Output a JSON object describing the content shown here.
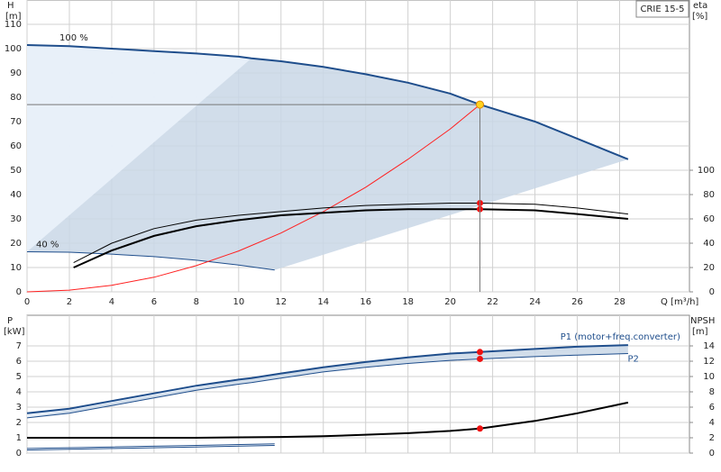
{
  "chart_data": [
    {
      "type": "line",
      "title": "CRIE 15-5",
      "ylabel": "H",
      "yunit": "[m]",
      "y2label": "eta",
      "y2unit": "[%]",
      "xlabel": "Q [m³/h]",
      "xlim": [
        0,
        31.3
      ],
      "xticks": [
        0,
        2,
        4,
        6,
        8,
        10,
        12,
        14,
        16,
        18,
        20,
        22,
        24,
        26,
        28
      ],
      "ylim": [
        0,
        120
      ],
      "yticks": [
        0,
        10,
        20,
        30,
        40,
        50,
        60,
        70,
        80,
        90,
        100,
        110
      ],
      "y2lim": [
        0,
        240
      ],
      "y2ticks": [
        0,
        20,
        40,
        60,
        80,
        100
      ],
      "grid": true,
      "duty_point": {
        "x": 21.4,
        "y": 77
      },
      "series": [
        {
          "name": "100 %",
          "color": "#1f4e8c",
          "x": [
            0,
            2,
            4,
            6,
            8,
            10,
            10.6,
            12,
            14,
            16,
            18,
            20,
            21.4,
            24,
            26,
            28.4
          ],
          "values": [
            101.5,
            101,
            100,
            99,
            98,
            96.7,
            96,
            94.8,
            92.5,
            89.5,
            86,
            81.5,
            77,
            70,
            63,
            54.5
          ]
        },
        {
          "name": "40 %",
          "color": "#1f4e8c",
          "x": [
            0,
            2,
            4,
            6,
            8,
            10,
            11.7
          ],
          "values": [
            16.5,
            16.3,
            15.5,
            14.5,
            13,
            11,
            9
          ]
        },
        {
          "color": "#ff2020",
          "x": [
            0,
            2,
            4,
            6,
            8,
            10,
            12,
            14,
            16,
            18,
            20,
            21.4
          ],
          "values": [
            0,
            0.7,
            2.7,
            6,
            10.8,
            16.8,
            24.2,
            33,
            43,
            54.5,
            67,
            77
          ]
        },
        {
          "color": "#000000",
          "axis": "y2",
          "x": [
            2.2,
            4,
            6,
            8,
            10,
            12,
            14,
            16,
            18,
            20,
            21.4,
            24,
            26,
            28.4
          ],
          "values": [
            20,
            34,
            46,
            54,
            59,
            63,
            65,
            67,
            68,
            68,
            68,
            67,
            64,
            60
          ]
        },
        {
          "color": "#000000",
          "axis": "y2",
          "x": [
            2.2,
            4,
            6,
            8,
            10,
            12,
            14,
            16,
            18,
            20,
            21.4,
            24,
            26,
            28.4
          ],
          "values": [
            24,
            40,
            52,
            59,
            63,
            66,
            69,
            71,
            72,
            73,
            73,
            72,
            69,
            64
          ]
        }
      ]
    },
    {
      "type": "line",
      "ylabel": "P",
      "yunit": "[kW]",
      "y2label": "NPSH",
      "y2unit": "[m]",
      "xlim": [
        0,
        31.3
      ],
      "ylim": [
        0,
        9
      ],
      "yticks": [
        0,
        1,
        2,
        3,
        4,
        5,
        6,
        7
      ],
      "y2lim": [
        0,
        18
      ],
      "y2ticks": [
        0,
        2,
        4,
        6,
        8,
        10,
        12,
        14
      ],
      "grid": true,
      "duty_point": {
        "x": 21.4
      },
      "series": [
        {
          "name": "P1 (motor+freq.converter)",
          "color": "#1f4e8c",
          "x": [
            0,
            2,
            4,
            6,
            8,
            10,
            10.6,
            12,
            14,
            16,
            18,
            20,
            21.4,
            24,
            26,
            28.4
          ],
          "values": [
            2.6,
            2.9,
            3.4,
            3.9,
            4.4,
            4.8,
            4.9,
            5.2,
            5.6,
            5.95,
            6.25,
            6.5,
            6.6,
            6.8,
            6.95,
            7.05
          ]
        },
        {
          "name": "P2",
          "color": "#1f4e8c",
          "x": [
            0,
            2,
            4,
            6,
            8,
            10,
            10.6,
            12,
            14,
            16,
            18,
            20,
            21.4,
            24,
            26,
            28.4
          ],
          "values": [
            2.3,
            2.6,
            3.1,
            3.6,
            4.1,
            4.5,
            4.6,
            4.9,
            5.3,
            5.6,
            5.85,
            6.05,
            6.15,
            6.3,
            6.4,
            6.5
          ]
        },
        {
          "color": "#1f4e8c",
          "x": [
            0,
            4,
            8,
            11.7
          ],
          "values": [
            0.3,
            0.4,
            0.5,
            0.6
          ]
        },
        {
          "color": "#1f4e8c",
          "x": [
            0,
            4,
            8,
            11.7
          ],
          "values": [
            0.2,
            0.3,
            0.4,
            0.5
          ]
        },
        {
          "color": "#000000",
          "axis": "y2",
          "x": [
            0,
            4,
            8,
            12,
            14,
            16,
            18,
            20,
            21.4,
            24,
            26,
            28.4
          ],
          "values": [
            2,
            2,
            2,
            2.1,
            2.2,
            2.4,
            2.6,
            2.9,
            3.2,
            4.2,
            5.2,
            6.6
          ]
        }
      ]
    }
  ]
}
